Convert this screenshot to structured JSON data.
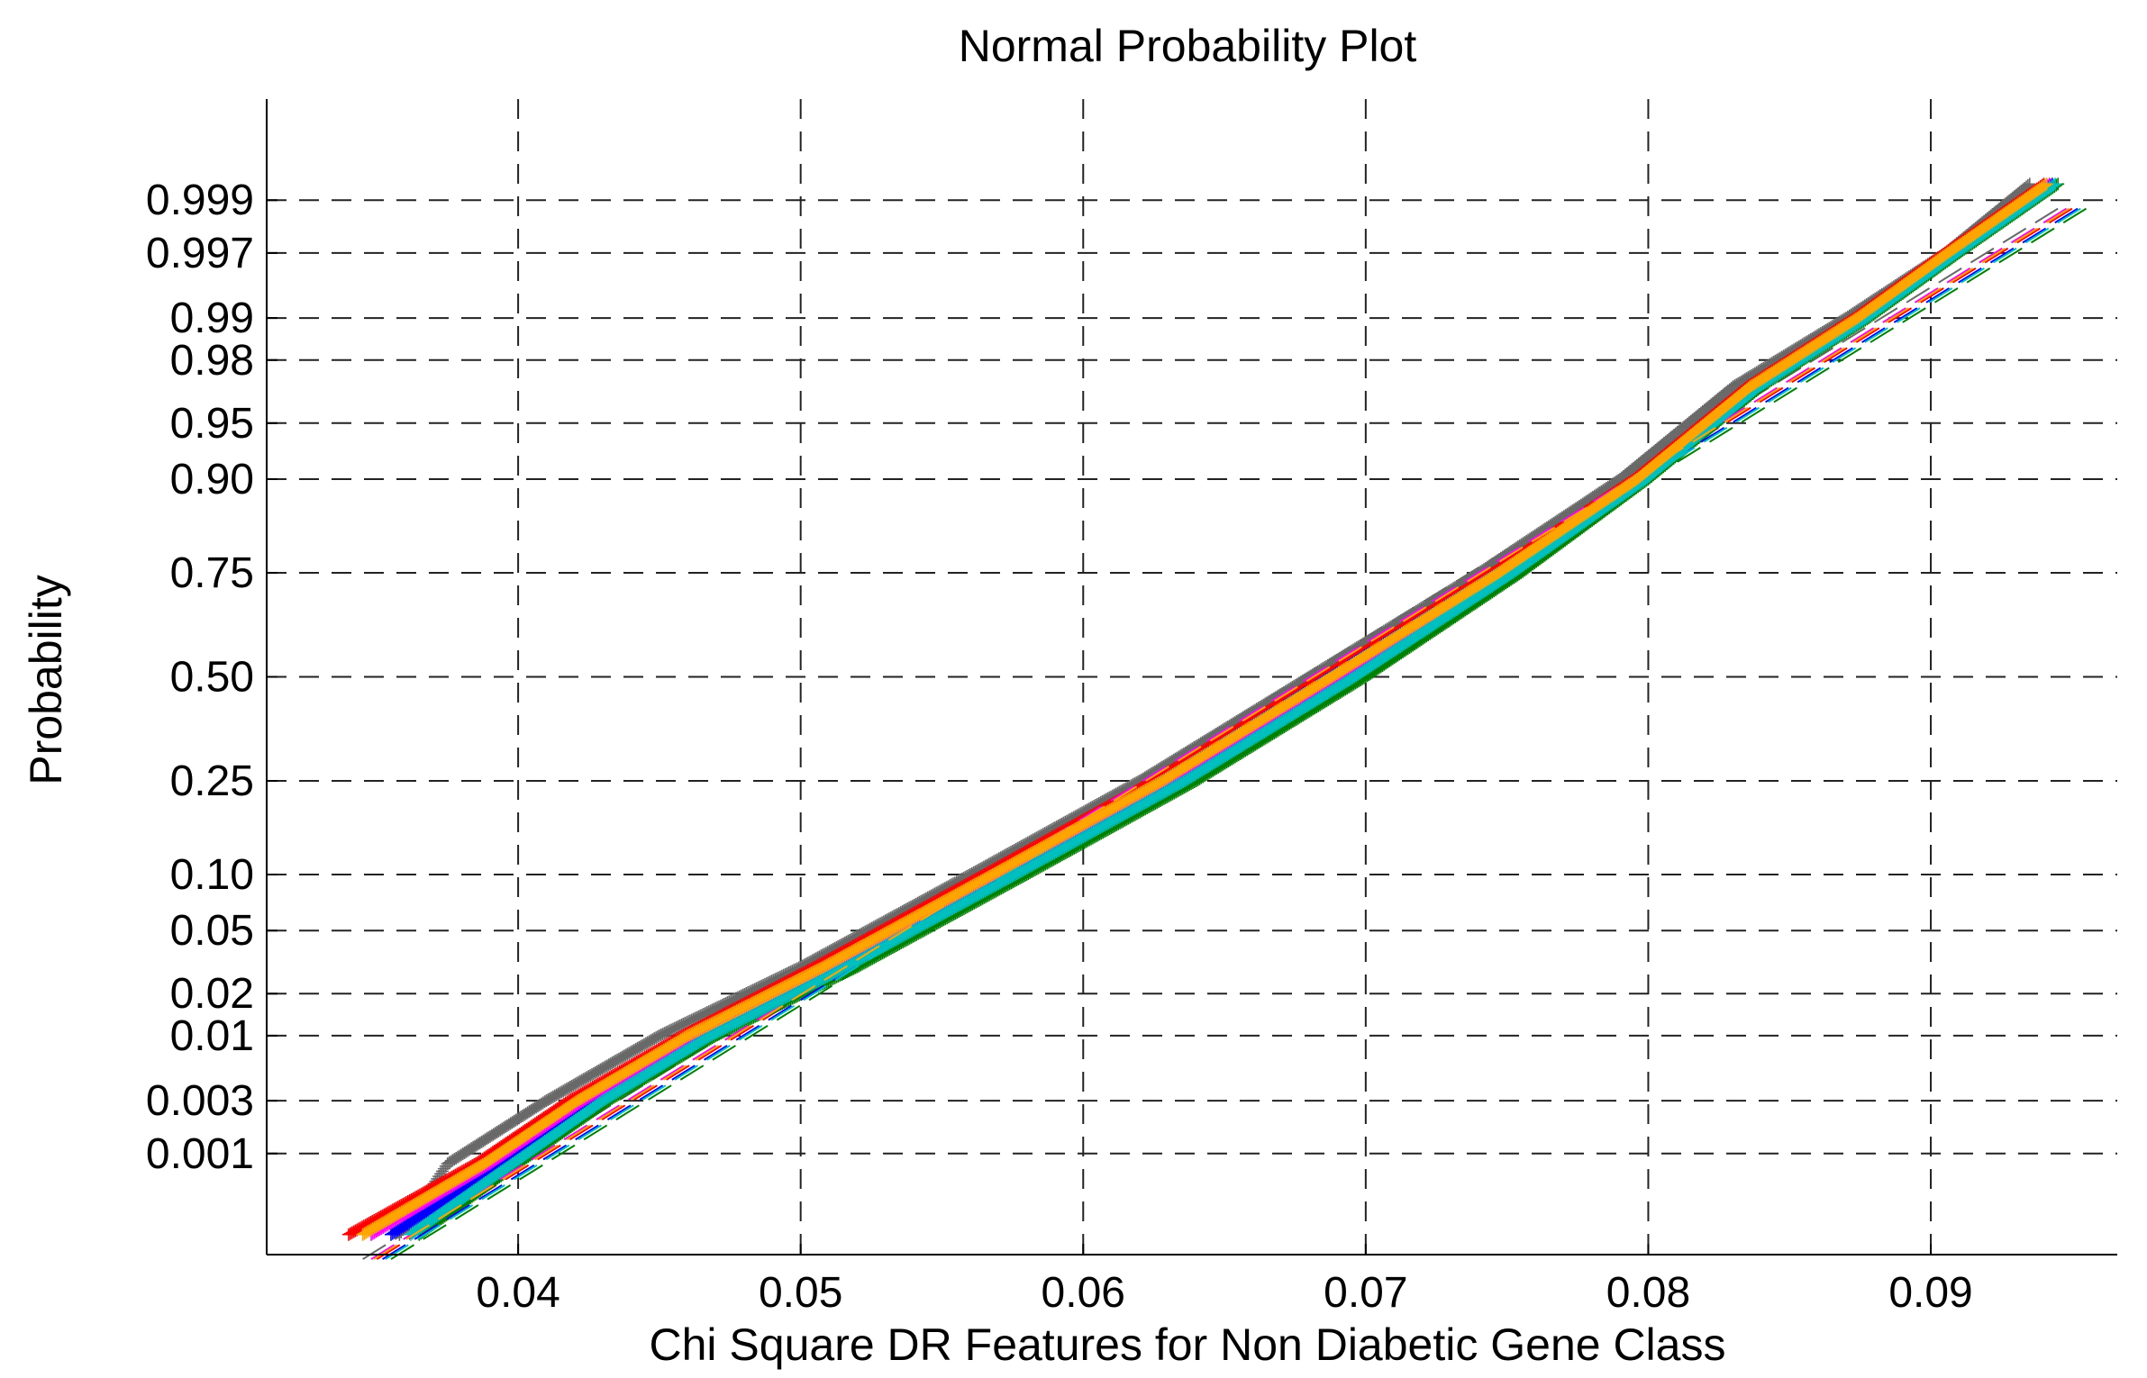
{
  "chart_data": {
    "type": "scatter",
    "title": "Normal Probability Plot",
    "xlabel": "Chi Square DR Features for Non Diabetic Gene  Class",
    "ylabel": "Probability",
    "xlim": [
      0.0311,
      0.0966
    ],
    "x_ticks": [
      {
        "value": 0.04,
        "label": "0.04"
      },
      {
        "value": 0.05,
        "label": "0.05"
      },
      {
        "value": 0.06,
        "label": "0.06"
      },
      {
        "value": 0.07,
        "label": "0.07"
      },
      {
        "value": 0.08,
        "label": "0.08"
      },
      {
        "value": 0.09,
        "label": "0.09"
      }
    ],
    "y_scale": "normal-probability",
    "ylim_probability": [
      9e-05,
      0.99991
    ],
    "y_ticks": [
      {
        "value": 0.001,
        "label": "0.001"
      },
      {
        "value": 0.003,
        "label": "0.003"
      },
      {
        "value": 0.01,
        "label": "0.01"
      },
      {
        "value": 0.02,
        "label": "0.02"
      },
      {
        "value": 0.05,
        "label": "0.05"
      },
      {
        "value": 0.1,
        "label": "0.10"
      },
      {
        "value": 0.25,
        "label": "0.25"
      },
      {
        "value": 0.5,
        "label": "0.50"
      },
      {
        "value": 0.75,
        "label": "0.75"
      },
      {
        "value": 0.9,
        "label": "0.90"
      },
      {
        "value": 0.95,
        "label": "0.95"
      },
      {
        "value": 0.98,
        "label": "0.98"
      },
      {
        "value": 0.99,
        "label": "0.99"
      },
      {
        "value": 0.997,
        "label": "0.997"
      },
      {
        "value": 0.999,
        "label": "0.999"
      }
    ],
    "grid": true,
    "grid_style": "dashed",
    "series": [
      {
        "color": "#696969",
        "points": [
          [
            0.0358,
            0.00015
          ],
          [
            0.0375,
            0.0008
          ],
          [
            0.041,
            0.003
          ],
          [
            0.045,
            0.01
          ],
          [
            0.05,
            0.03
          ],
          [
            0.056,
            0.1
          ],
          [
            0.062,
            0.25
          ],
          [
            0.068,
            0.5
          ],
          [
            0.074,
            0.75
          ],
          [
            0.079,
            0.9
          ],
          [
            0.083,
            0.97
          ],
          [
            0.087,
            0.99
          ],
          [
            0.0905,
            0.997
          ],
          [
            0.0935,
            0.9993
          ]
        ],
        "fit": [
          [
            0.0345,
            8e-05
          ],
          [
            0.0945,
            0.9988
          ]
        ]
      },
      {
        "color": "#ff0000",
        "points": [
          [
            0.034,
            0.00015
          ],
          [
            0.0385,
            0.0008
          ],
          [
            0.0418,
            0.003
          ],
          [
            0.0458,
            0.01
          ],
          [
            0.0505,
            0.03
          ],
          [
            0.0565,
            0.1
          ],
          [
            0.0625,
            0.25
          ],
          [
            0.0685,
            0.5
          ],
          [
            0.0745,
            0.75
          ],
          [
            0.0795,
            0.9
          ],
          [
            0.0835,
            0.97
          ],
          [
            0.0873,
            0.99
          ],
          [
            0.0905,
            0.997
          ],
          [
            0.094,
            0.9993
          ]
        ],
        "fit": [
          [
            0.035,
            8e-05
          ],
          [
            0.095,
            0.9988
          ]
        ]
      },
      {
        "color": "#008000",
        "points": [
          [
            0.0365,
            0.00015
          ],
          [
            0.04,
            0.0008
          ],
          [
            0.0432,
            0.003
          ],
          [
            0.047,
            0.01
          ],
          [
            0.052,
            0.03
          ],
          [
            0.058,
            0.1
          ],
          [
            0.064,
            0.25
          ],
          [
            0.07,
            0.5
          ],
          [
            0.0755,
            0.75
          ],
          [
            0.08,
            0.9
          ],
          [
            0.084,
            0.97
          ],
          [
            0.0878,
            0.99
          ],
          [
            0.091,
            0.997
          ],
          [
            0.0945,
            0.9993
          ]
        ],
        "fit": [
          [
            0.0355,
            8e-05
          ],
          [
            0.0955,
            0.9988
          ]
        ]
      },
      {
        "color": "#0000ff",
        "points": [
          [
            0.0355,
            0.00015
          ],
          [
            0.0395,
            0.0008
          ],
          [
            0.0428,
            0.003
          ],
          [
            0.0466,
            0.01
          ],
          [
            0.0514,
            0.03
          ],
          [
            0.0574,
            0.1
          ],
          [
            0.0634,
            0.25
          ],
          [
            0.0694,
            0.5
          ],
          [
            0.075,
            0.75
          ],
          [
            0.0798,
            0.9
          ],
          [
            0.0838,
            0.97
          ],
          [
            0.0876,
            0.99
          ],
          [
            0.0908,
            0.997
          ],
          [
            0.0943,
            0.9993
          ]
        ],
        "fit": [
          [
            0.0352,
            8e-05
          ],
          [
            0.0952,
            0.9988
          ]
        ]
      },
      {
        "color": "#ff00ff",
        "points": [
          [
            0.0348,
            0.00015
          ],
          [
            0.039,
            0.0008
          ],
          [
            0.0423,
            0.003
          ],
          [
            0.0462,
            0.01
          ],
          [
            0.051,
            0.03
          ],
          [
            0.057,
            0.1
          ],
          [
            0.063,
            0.25
          ],
          [
            0.069,
            0.5
          ],
          [
            0.0748,
            0.75
          ],
          [
            0.0797,
            0.9
          ],
          [
            0.0837,
            0.97
          ],
          [
            0.0875,
            0.99
          ],
          [
            0.0907,
            0.997
          ],
          [
            0.0942,
            0.9993
          ]
        ],
        "fit": [
          [
            0.0348,
            8e-05
          ],
          [
            0.0948,
            0.9988
          ]
        ]
      },
      {
        "color": "#00bfbf",
        "points": [
          [
            0.0362,
            0.00015
          ],
          [
            0.0398,
            0.0008
          ],
          [
            0.043,
            0.003
          ],
          [
            0.0468,
            0.01
          ],
          [
            0.0516,
            0.03
          ],
          [
            0.0576,
            0.1
          ],
          [
            0.0636,
            0.25
          ],
          [
            0.0696,
            0.5
          ],
          [
            0.0752,
            0.75
          ],
          [
            0.0799,
            0.9
          ],
          [
            0.0839,
            0.97
          ],
          [
            0.0877,
            0.99
          ],
          [
            0.0909,
            0.997
          ],
          [
            0.0944,
            0.9993
          ]
        ],
        "fit": [
          [
            0.0353,
            8e-05
          ],
          [
            0.0953,
            0.9988
          ]
        ]
      },
      {
        "color": "#ffa500",
        "points": [
          [
            0.0345,
            0.00015
          ],
          [
            0.0388,
            0.0008
          ],
          [
            0.0421,
            0.003
          ],
          [
            0.046,
            0.01
          ],
          [
            0.0508,
            0.03
          ],
          [
            0.0568,
            0.1
          ],
          [
            0.0628,
            0.25
          ],
          [
            0.0688,
            0.5
          ],
          [
            0.0747,
            0.75
          ],
          [
            0.0796,
            0.9
          ],
          [
            0.0836,
            0.97
          ],
          [
            0.0874,
            0.99
          ],
          [
            0.0906,
            0.997
          ],
          [
            0.0941,
            0.9993
          ]
        ],
        "fit": [
          [
            0.0349,
            8e-05
          ],
          [
            0.0949,
            0.9988
          ]
        ]
      }
    ]
  }
}
